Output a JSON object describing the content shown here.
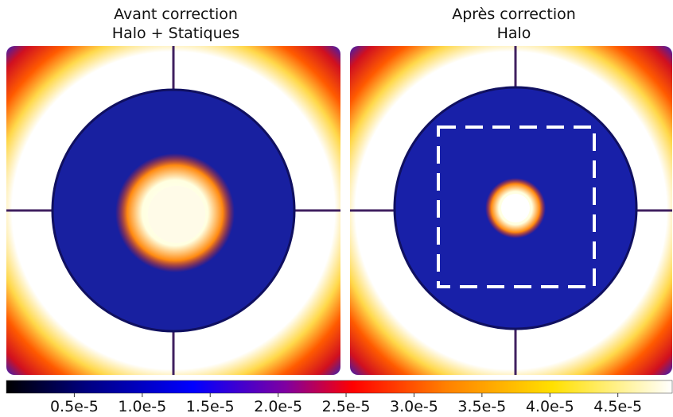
{
  "panels": [
    {
      "title": [
        "Avant correction",
        "Halo + Statiques"
      ]
    },
    {
      "title": [
        "Après correction",
        "Halo"
      ]
    }
  ],
  "colorbar": {
    "lim": [
      0,
      4.9e-05
    ],
    "ticks": [
      {
        "value": 5e-06,
        "label": "0.5e-5"
      },
      {
        "value": 1e-05,
        "label": "1.0e-5"
      },
      {
        "value": 1.5e-05,
        "label": "1.5e-5"
      },
      {
        "value": 2e-05,
        "label": "2.0e-5"
      },
      {
        "value": 2.5e-05,
        "label": "2.5e-5"
      },
      {
        "value": 3e-05,
        "label": "3.0e-5"
      },
      {
        "value": 3.5e-05,
        "label": "3.5e-5"
      },
      {
        "value": 4e-05,
        "label": "4.0e-5"
      },
      {
        "value": 4.5e-05,
        "label": "4.5e-5"
      }
    ]
  }
}
